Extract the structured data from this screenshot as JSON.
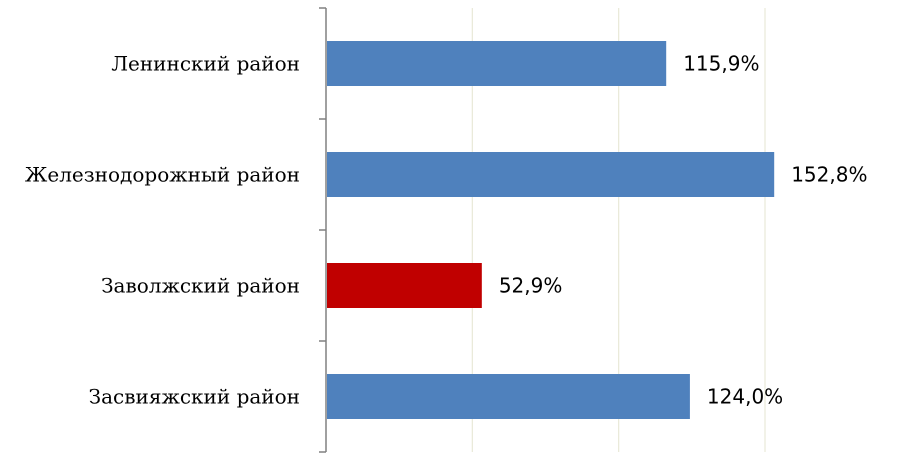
{
  "chart_data": {
    "type": "bar",
    "orientation": "horizontal",
    "categories": [
      "Ленинский район",
      "Железнодорожный район",
      "Заволжский район",
      "Засвияжский район"
    ],
    "values": [
      115.9,
      152.8,
      52.9,
      124.0
    ],
    "value_labels": [
      "115,9%",
      "152,8%",
      "52,9%",
      "124,0%"
    ],
    "bar_colors": [
      "#4F81BD",
      "#4F81BD",
      "#C00000",
      "#4F81BD"
    ],
    "xlim": [
      0,
      150
    ],
    "x_gridlines": [
      50,
      100,
      150
    ],
    "grid": true,
    "gridline_color": "#E8E8D8",
    "axis_color": "#808080"
  }
}
